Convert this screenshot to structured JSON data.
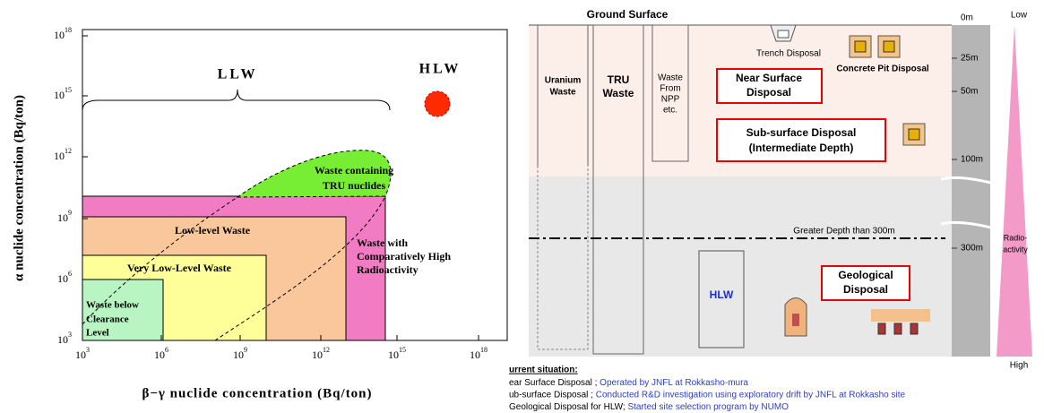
{
  "left_chart": {
    "y_axis_label": "α nuclide concentration (Bq/ton)",
    "x_axis_label": "β−γ nuclide concentration (Bq/ton)",
    "yticks": [
      {
        "base": "10",
        "exp": "3"
      },
      {
        "base": "10",
        "exp": "6"
      },
      {
        "base": "10",
        "exp": "9"
      },
      {
        "base": "10",
        "exp": "12"
      },
      {
        "base": "10",
        "exp": "15"
      },
      {
        "base": "10",
        "exp": "18"
      }
    ],
    "xticks": [
      {
        "base": "10",
        "exp": "3"
      },
      {
        "base": "10",
        "exp": "6"
      },
      {
        "base": "10",
        "exp": "9"
      },
      {
        "base": "10",
        "exp": "12"
      },
      {
        "base": "10",
        "exp": "15"
      },
      {
        "base": "10",
        "exp": "18"
      }
    ],
    "llw": "LLW",
    "hlw": "HLW",
    "tru": [
      "Waste containing",
      "TRU nuclides"
    ],
    "low_level": "Low-level Waste",
    "very_low_level": "Very  Low-Level Waste",
    "clearance": [
      "Waste below",
      "Clearance",
      "Level"
    ],
    "high_radio": [
      "Waste with",
      "Comparatively High",
      "Radioactivity"
    ]
  },
  "right_diagram": {
    "ground_surface": "Ground Surface",
    "uranium": [
      "Uranium",
      "Waste"
    ],
    "tru": [
      "TRU",
      "Waste"
    ],
    "npp": [
      "Waste",
      "From",
      "NPP",
      "etc."
    ],
    "trench": "Trench Disposal",
    "concrete_pit": "Concrete Pit Disposal",
    "near_surface": [
      "Near Surface",
      "Disposal"
    ],
    "sub_surface": [
      "Sub-surface Disposal",
      "(Intermediate Depth)"
    ],
    "greater_depth": "Greater Depth than 300m",
    "hlw": "HLW",
    "geological": [
      "Geological",
      "Disposal"
    ],
    "depths": [
      "0m",
      "25m",
      "50m",
      "100m",
      "300m"
    ],
    "low": "Low",
    "high": "High",
    "radioactivity": [
      "Radio-",
      "activity"
    ]
  },
  "current_situation": {
    "title": "urrent situation:",
    "items": [
      {
        "label": "ear Surface Disposal ; ",
        "detail": "Operated by JNFL at Rokkasho-mura"
      },
      {
        "label": "ub-surface Disposal ; ",
        "detail": "Conducted R&D investigation using exploratory drift by JNFL at Rokkasho site"
      },
      {
        "label": "Geological Disposal for HLW; ",
        "detail": "Started site selection program by NUMO"
      }
    ]
  }
}
